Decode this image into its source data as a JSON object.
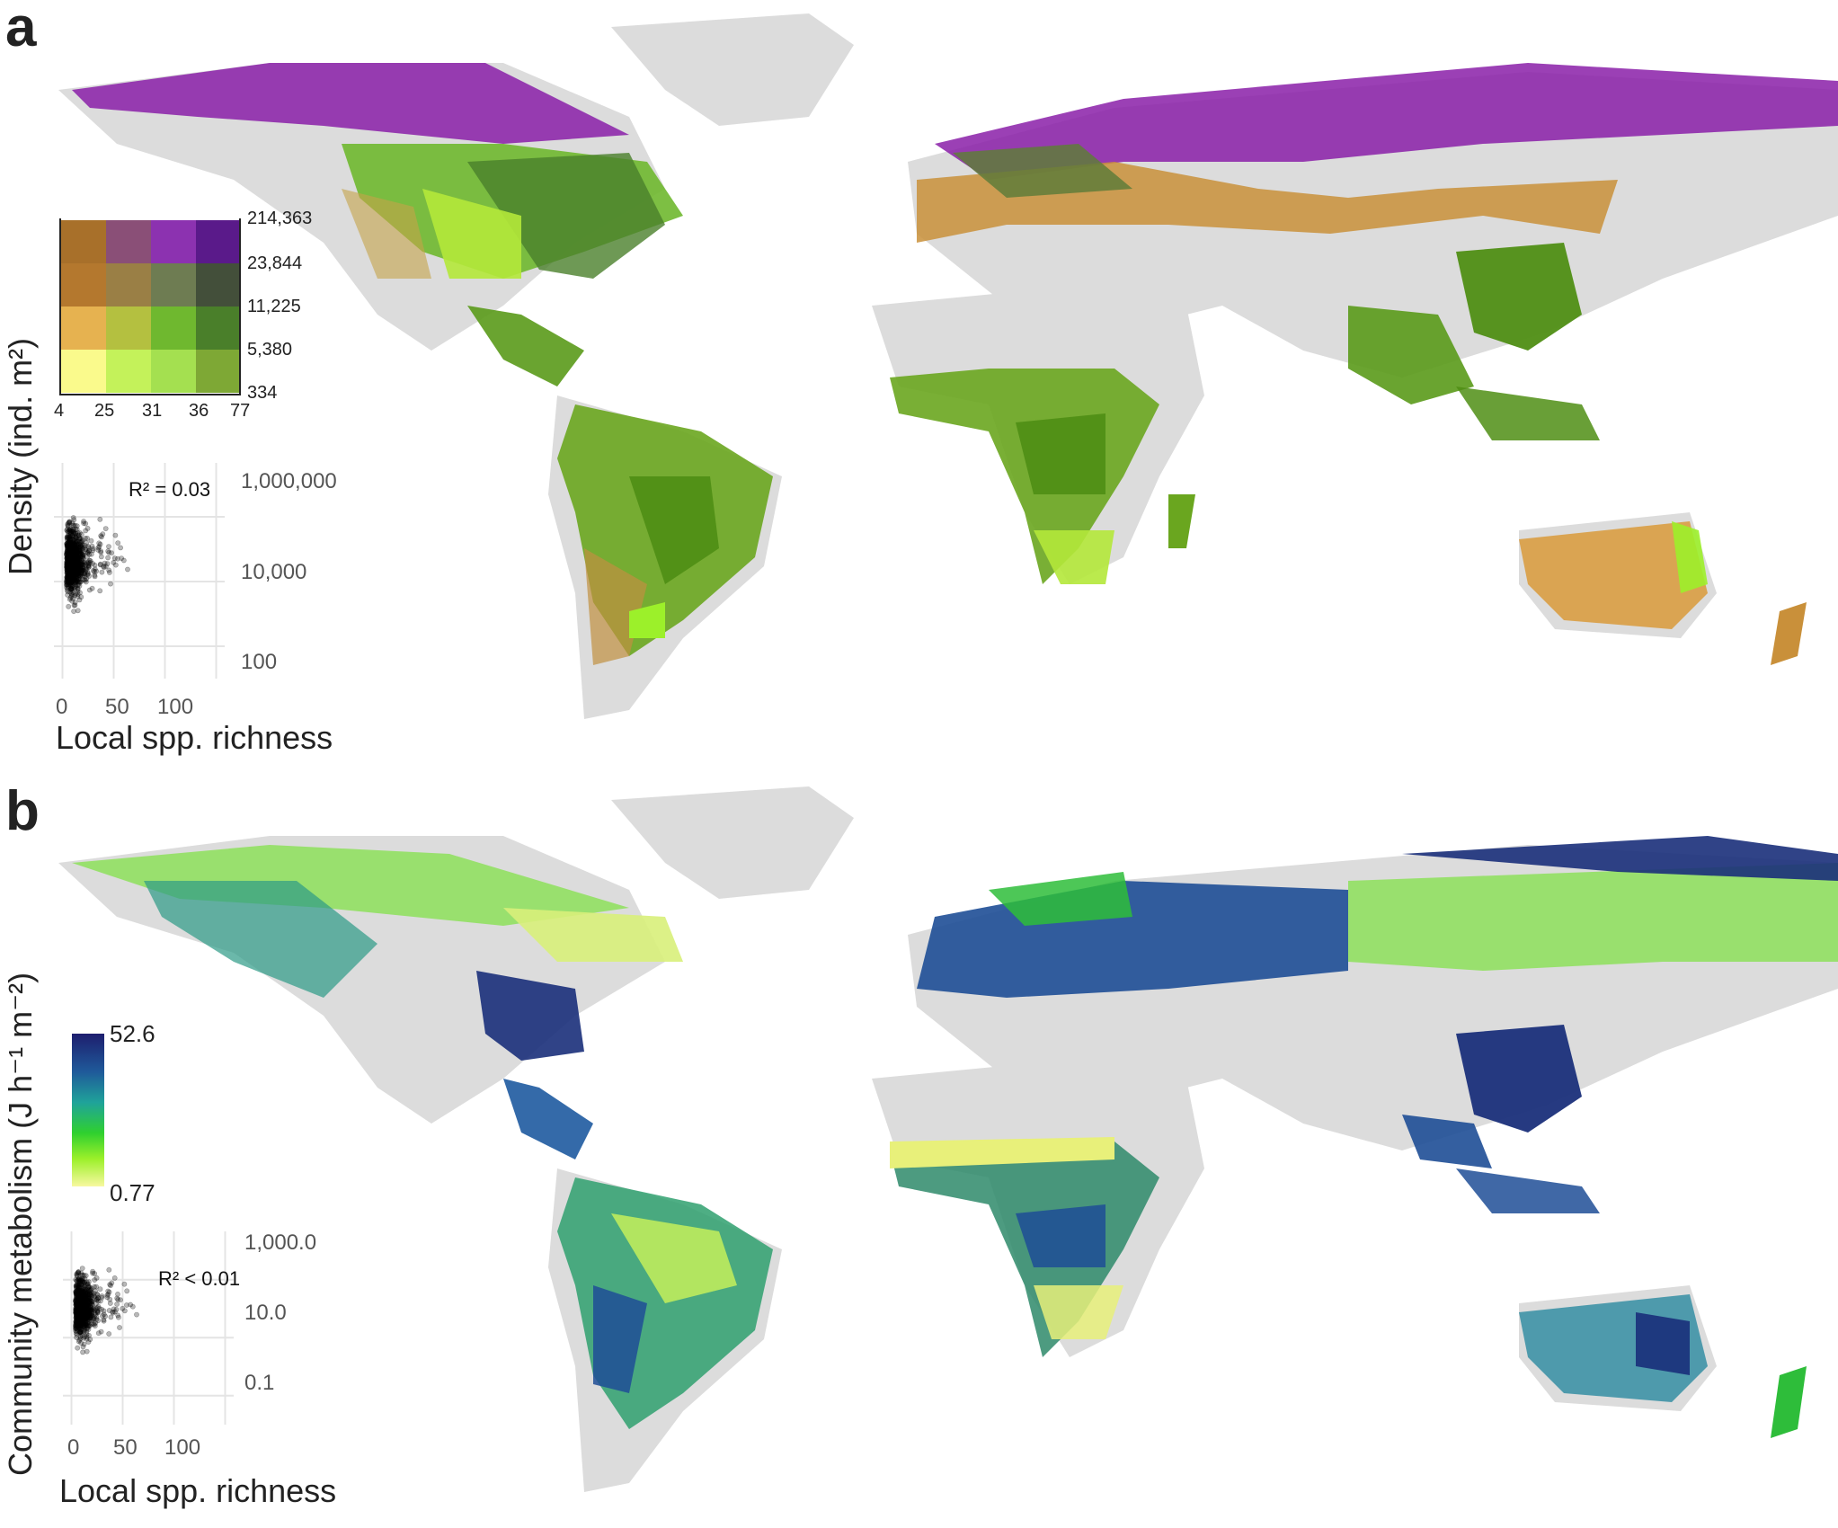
{
  "panel_a": {
    "label": "a",
    "y_axis_label": "Density (ind. m²)",
    "x_axis_label": "Local spp. richness",
    "bivariate_legend": {
      "density_ticks": [
        "214,363",
        "23,844",
        "11,225",
        "5,380",
        "334"
      ],
      "richness_ticks": [
        "4",
        "25",
        "31",
        "36",
        "77"
      ],
      "colors": [
        [
          "#a8702a",
          "#8a4f77",
          "#8c32b0",
          "#5a1a8a"
        ],
        [
          "#b4782e",
          "#9a7f45",
          "#6e7c52",
          "#434f3a"
        ],
        [
          "#e6b250",
          "#b4c040",
          "#6fb82f",
          "#4a7f2a"
        ],
        [
          "#fafa8c",
          "#c4f25a",
          "#a4e050",
          "#7ea835"
        ]
      ]
    },
    "scatter": {
      "r2": "R² = 0.03",
      "y_ticks": [
        "1,000,000",
        "10,000",
        "100"
      ],
      "x_ticks": [
        "0",
        "50",
        "100"
      ]
    }
  },
  "panel_b": {
    "label": "b",
    "y_axis_label": "Community metabolism (J h⁻¹ m⁻²)",
    "x_axis_label": "Local spp. richness",
    "colorbar": {
      "max": "52.6",
      "min": "0.77"
    },
    "scatter": {
      "r2": "R² < 0.01",
      "y_ticks": [
        "1,000.0",
        "10.0",
        "0.1"
      ],
      "x_ticks": [
        "0",
        "50",
        "100"
      ]
    }
  },
  "colors": {
    "land_no_data": "#dcdcdc",
    "map_a_forest": "#5a9a1a",
    "map_a_boreal": "#8a1fa8",
    "map_a_arid": "#d99a3a",
    "map_b_high": "#1a2f7a",
    "map_b_mid": "#2ebd3a",
    "map_b_low": "#e8f07a"
  }
}
